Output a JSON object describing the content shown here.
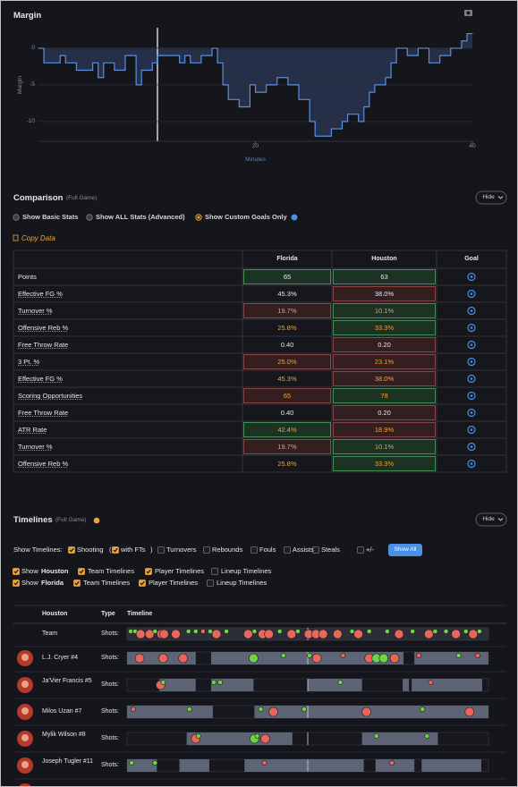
{
  "chart_data": {
    "type": "line",
    "title": "Margin",
    "x_label": "Minutes",
    "y_label": "Margin",
    "step": true,
    "color": "#5b8fe0",
    "x": [
      0,
      0.5,
      2,
      2.5,
      3.5,
      5,
      5.5,
      6,
      7,
      8,
      9,
      9.5,
      10.5,
      11,
      12,
      13,
      13.5,
      14,
      15,
      16,
      16.5,
      17,
      17.5,
      18.5,
      19.5,
      20,
      21,
      22,
      23,
      24,
      25,
      25.5,
      27,
      28,
      28.5,
      29.5,
      30,
      30.5,
      31,
      32,
      32.5,
      33,
      34,
      35,
      36,
      37,
      38,
      39,
      39.5
    ],
    "values": [
      0,
      -2,
      -1,
      -2,
      -3,
      -2,
      -4,
      -2,
      -3,
      -1,
      -5,
      -3,
      -2,
      -1,
      -1,
      -2,
      -1,
      -2,
      -1,
      0,
      -2,
      -5,
      -7,
      -8,
      -5,
      -6,
      -5,
      -4,
      -5,
      -7,
      -10,
      -12,
      -11,
      -10,
      -9,
      -10,
      -8,
      -6,
      -5,
      -4,
      -2,
      0,
      -1,
      0,
      -2,
      -1,
      0,
      1,
      2
    ],
    "xlim": [
      0,
      40
    ],
    "ylim": [
      -12.7,
      2.8
    ],
    "xticks": [
      20,
      40
    ],
    "yticks": [
      0,
      -5,
      -10
    ],
    "grid": true
  },
  "comparison": {
    "title": "Comparison",
    "scope": "(Full Game)",
    "hide": "Hide",
    "options": [
      "Show Basic Stats",
      "Show ALL Stats (Advanced)",
      "Show Custom Goals Only"
    ],
    "selected": 2,
    "copy": "Copy Data",
    "columns": [
      "Florida",
      "Houston",
      "Goal"
    ],
    "rows": [
      {
        "label": "Points",
        "florida": "65",
        "houston": "63",
        "florida_color": "green",
        "houston_color": "green",
        "text_color": "white"
      },
      {
        "label": "Effective FG %",
        "florida": "45.3%",
        "houston": "38.0%",
        "florida_color": "none",
        "houston_color": "red",
        "text_color": "white"
      },
      {
        "label": "Turnover %",
        "florida": "19.7%",
        "houston": "10.1%",
        "florida_color": "red",
        "houston_color": "green",
        "text_color": "orange"
      },
      {
        "label": "Offensive Reb %",
        "florida": "25.8%",
        "houston": "33.3%",
        "florida_color": "none",
        "houston_color": "green",
        "text_color": "orange"
      },
      {
        "label": "Free Throw Rate",
        "florida": "0.40",
        "houston": "0.20",
        "florida_color": "none",
        "houston_color": "red",
        "text_color": "white"
      },
      {
        "label": "3 Pt. %",
        "florida": "25.0%",
        "houston": "23.1%",
        "florida_color": "red",
        "houston_color": "red",
        "text_color": "orange"
      },
      {
        "label": "Effective FG %",
        "florida": "45.3%",
        "houston": "38.0%",
        "florida_color": "none",
        "houston_color": "red",
        "text_color": "orange"
      },
      {
        "label": "Scoring Opportunities",
        "florida": "65",
        "houston": "78",
        "florida_color": "red",
        "houston_color": "green",
        "text_color": "orange"
      },
      {
        "label": "Free Throw Rate",
        "florida": "0.40",
        "houston": "0.20",
        "florida_color": "none",
        "houston_color": "red",
        "text_color": "white"
      },
      {
        "label": "ATR Rate",
        "florida": "42.4%",
        "houston": "18.9%",
        "florida_color": "green",
        "houston_color": "red",
        "text_color": "orange"
      },
      {
        "label": "Turnover %",
        "florida": "19.7%",
        "houston": "10.1%",
        "florida_color": "red",
        "houston_color": "green",
        "text_color": "orange"
      },
      {
        "label": "Offensive Reb %",
        "florida": "25.8%",
        "houston": "33.3%",
        "florida_color": "none",
        "houston_color": "green",
        "text_color": "orange"
      }
    ]
  },
  "timelines": {
    "title": "Timelines",
    "scope": "(Full Game)",
    "hide": "Hide",
    "show_label": "Show Timelines:",
    "options": [
      {
        "label": "Shooting",
        "checked": true,
        "sub": {
          "prefix": "(",
          "label": "with FTs",
          "suffix": ")",
          "checked": true
        }
      },
      {
        "label": "Turnovers",
        "checked": false
      },
      {
        "label": "Rebounds",
        "checked": false
      },
      {
        "label": "Fouls",
        "checked": false
      },
      {
        "label": "Assists",
        "checked": false
      },
      {
        "label": "Steals",
        "checked": false
      },
      {
        "label": "+/-",
        "checked": false
      }
    ],
    "show_all": "Show All",
    "teams": [
      {
        "prefix": "Show",
        "team": "Houston",
        "checked": true,
        "options": [
          {
            "label": "Team Timelines",
            "checked": true
          },
          {
            "label": "Player Timelines",
            "checked": true
          },
          {
            "label": "Lineup Timelines",
            "checked": false
          }
        ]
      },
      {
        "prefix": "Show",
        "team": "Florida",
        "checked": true,
        "options": [
          {
            "label": "Team Timelines",
            "checked": true
          },
          {
            "label": "Player Timelines",
            "checked": true
          },
          {
            "label": "Lineup Timelines",
            "checked": false
          }
        ]
      }
    ],
    "columns": [
      "Houston",
      "Type",
      "Timeline"
    ],
    "xlim": [
      0,
      40
    ],
    "rows": [
      {
        "name": "Team",
        "type": "Shots:",
        "stints": [
          [
            0,
            40
          ]
        ],
        "shots": [
          {
            "t": 0.4,
            "made": true,
            "three": false
          },
          {
            "t": 0.9,
            "made": true,
            "three": false
          },
          {
            "t": 1.5,
            "made": false,
            "three": true
          },
          {
            "t": 2.5,
            "made": false,
            "three": true
          },
          {
            "t": 3.1,
            "made": true,
            "three": false
          },
          {
            "t": 3.8,
            "made": false,
            "three": true
          },
          {
            "t": 4.1,
            "made": false,
            "three": true
          },
          {
            "t": 5.4,
            "made": false,
            "three": true
          },
          {
            "t": 6.8,
            "made": true,
            "three": false
          },
          {
            "t": 7.6,
            "made": true,
            "three": false
          },
          {
            "t": 8.4,
            "made": false,
            "three": false
          },
          {
            "t": 9.2,
            "made": true,
            "three": false
          },
          {
            "t": 9.9,
            "made": false,
            "three": true
          },
          {
            "t": 11,
            "made": true,
            "three": false
          },
          {
            "t": 13.4,
            "made": false,
            "three": true
          },
          {
            "t": 14.1,
            "made": true,
            "three": false
          },
          {
            "t": 15,
            "made": false,
            "three": true
          },
          {
            "t": 15.7,
            "made": false,
            "three": true
          },
          {
            "t": 16.9,
            "made": true,
            "three": false
          },
          {
            "t": 18.2,
            "made": false,
            "three": true
          },
          {
            "t": 18.9,
            "made": true,
            "three": false
          },
          {
            "t": 20.1,
            "made": false,
            "three": true
          },
          {
            "t": 20.9,
            "made": false,
            "three": true
          },
          {
            "t": 21.7,
            "made": false,
            "three": true
          },
          {
            "t": 23.3,
            "made": false,
            "three": true
          },
          {
            "t": 24.9,
            "made": true,
            "three": false
          },
          {
            "t": 25.6,
            "made": false,
            "three": true
          },
          {
            "t": 26.8,
            "made": true,
            "three": false
          },
          {
            "t": 28.8,
            "made": true,
            "three": false
          },
          {
            "t": 30.1,
            "made": false,
            "three": true
          },
          {
            "t": 31.6,
            "made": true,
            "three": false
          },
          {
            "t": 33.4,
            "made": false,
            "three": true
          },
          {
            "t": 34.1,
            "made": true,
            "three": false
          },
          {
            "t": 35.3,
            "made": true,
            "three": false
          },
          {
            "t": 36.4,
            "made": false,
            "three": true
          },
          {
            "t": 37.5,
            "made": true,
            "three": false
          },
          {
            "t": 38.3,
            "made": false,
            "three": true
          },
          {
            "t": 39,
            "made": true,
            "three": false
          }
        ]
      },
      {
        "name": "L.J. Cryer #4",
        "type": "Shots:",
        "stints": [
          [
            0,
            7.6
          ],
          [
            9.3,
            30.6
          ],
          [
            31.8,
            40
          ]
        ],
        "shots": [
          {
            "t": 1.4,
            "made": false,
            "three": true
          },
          {
            "t": 4,
            "made": false,
            "three": true
          },
          {
            "t": 6.2,
            "made": false,
            "three": true
          },
          {
            "t": 14,
            "made": true,
            "three": true
          },
          {
            "t": 17.3,
            "made": true,
            "three": false
          },
          {
            "t": 20.2,
            "made": true,
            "three": false
          },
          {
            "t": 21,
            "made": false,
            "three": true
          },
          {
            "t": 23.9,
            "made": false,
            "three": false
          },
          {
            "t": 26.8,
            "made": false,
            "three": true
          },
          {
            "t": 27.6,
            "made": true,
            "three": true
          },
          {
            "t": 28.4,
            "made": true,
            "three": true
          },
          {
            "t": 29.6,
            "made": false,
            "three": true
          },
          {
            "t": 32.3,
            "made": false,
            "three": false
          },
          {
            "t": 36.7,
            "made": true,
            "three": false
          },
          {
            "t": 38.8,
            "made": false,
            "three": false
          }
        ]
      },
      {
        "name": "Ja'Vier Francis #5",
        "type": "Shots:",
        "stints": [
          [
            3.6,
            7.6
          ],
          [
            9.3,
            14
          ],
          [
            20,
            26
          ],
          [
            30.5,
            31.2
          ],
          [
            31.5,
            39.3
          ]
        ],
        "shots": [
          {
            "t": 3.7,
            "made": false,
            "three": true
          },
          {
            "t": 4,
            "made": true,
            "three": false
          },
          {
            "t": 9.6,
            "made": true,
            "three": false
          },
          {
            "t": 10.3,
            "made": true,
            "three": false
          },
          {
            "t": 23.6,
            "made": true,
            "three": false
          },
          {
            "t": 33.6,
            "made": false,
            "three": false
          }
        ]
      },
      {
        "name": "Milos Uzan #7",
        "type": "Shots:",
        "stints": [
          [
            0,
            9.5
          ],
          [
            14.1,
            40
          ]
        ],
        "shots": [
          {
            "t": 0.7,
            "made": false,
            "three": false
          },
          {
            "t": 6.9,
            "made": true,
            "three": false
          },
          {
            "t": 14.8,
            "made": true,
            "three": false
          },
          {
            "t": 16.2,
            "made": false,
            "three": true
          },
          {
            "t": 19.6,
            "made": true,
            "three": false
          },
          {
            "t": 26.5,
            "made": false,
            "three": true
          },
          {
            "t": 32.7,
            "made": true,
            "three": false
          },
          {
            "t": 37.9,
            "made": false,
            "three": true
          }
        ]
      },
      {
        "name": "Mylik Wilson #8",
        "type": "Shots:",
        "stints": [
          [
            6.6,
            18.3
          ],
          [
            26,
            34.4
          ]
        ],
        "shots": [
          {
            "t": 7.6,
            "made": false,
            "three": true
          },
          {
            "t": 7.9,
            "made": true,
            "three": false
          },
          {
            "t": 14.1,
            "made": true,
            "three": true
          },
          {
            "t": 14.4,
            "made": true,
            "three": false
          },
          {
            "t": 15.3,
            "made": false,
            "three": true
          },
          {
            "t": 27.6,
            "made": true,
            "three": false
          },
          {
            "t": 33.2,
            "made": true,
            "three": false
          }
        ]
      },
      {
        "name": "Joseph Tugler #11",
        "type": "Shots:",
        "stints": [
          [
            0,
            3.3
          ],
          [
            5.8,
            9.1
          ],
          [
            13,
            26.2
          ],
          [
            27.5,
            31.8
          ],
          [
            32.6,
            39.2
          ]
        ],
        "shots": [
          {
            "t": 0.5,
            "made": true,
            "three": false
          },
          {
            "t": 3.1,
            "made": true,
            "three": false
          },
          {
            "t": 15.2,
            "made": false,
            "three": false
          },
          {
            "t": 29.3,
            "made": false,
            "three": false
          }
        ]
      }
    ]
  }
}
